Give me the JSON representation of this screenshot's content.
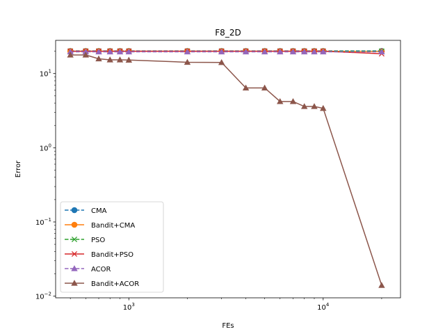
{
  "chart_data": {
    "type": "line",
    "title": "F8_2D",
    "xlabel": "FEs",
    "ylabel": "Error",
    "xscale": "log",
    "yscale": "log",
    "xlim": [
      420,
      25000
    ],
    "ylim": [
      0.0095,
      28
    ],
    "x": [
      500,
      600,
      700,
      800,
      900,
      1000,
      2000,
      3000,
      4000,
      5000,
      6000,
      7000,
      8000,
      9000,
      10000,
      20000
    ],
    "xticks": [
      {
        "value": 1000,
        "base": "10",
        "exp": "3"
      },
      {
        "value": 10000,
        "base": "10",
        "exp": "4"
      }
    ],
    "yticks": [
      {
        "value": 0.01,
        "base": "10",
        "exp": "−2"
      },
      {
        "value": 0.1,
        "base": "10",
        "exp": "−1"
      },
      {
        "value": 1,
        "base": "10",
        "exp": "0"
      },
      {
        "value": 10,
        "base": "10",
        "exp": "1"
      }
    ],
    "legend_position": "lower-left",
    "series": [
      {
        "name": "CMA",
        "color": "#1f77b4",
        "dash": "dashed",
        "marker": "circle",
        "values": [
          20.2,
          20.2,
          20.2,
          20.2,
          20.2,
          20.2,
          20.2,
          20.2,
          20.2,
          20.2,
          20.2,
          20.2,
          20.2,
          20.2,
          20.2,
          20.2
        ]
      },
      {
        "name": "Bandit+CMA",
        "color": "#ff7f0e",
        "dash": "solid",
        "marker": "circle",
        "values": [
          20.0,
          20.0,
          20.0,
          20.0,
          20.0,
          20.0,
          20.0,
          20.0,
          20.0,
          20.0,
          20.0,
          20.0,
          20.0,
          20.0,
          20.0,
          19.9
        ]
      },
      {
        "name": "PSO",
        "color": "#2ca02c",
        "dash": "dashed",
        "marker": "x",
        "values": [
          20.0,
          20.0,
          20.0,
          20.0,
          20.0,
          20.0,
          20.0,
          20.0,
          20.0,
          20.0,
          20.0,
          20.0,
          20.0,
          20.0,
          20.0,
          20.0
        ]
      },
      {
        "name": "Bandit+PSO",
        "color": "#d62728",
        "dash": "solid",
        "marker": "x",
        "values": [
          20.0,
          20.0,
          20.0,
          20.0,
          20.0,
          20.0,
          20.0,
          20.0,
          20.0,
          20.0,
          20.0,
          20.0,
          20.0,
          20.0,
          20.0,
          18.5
        ]
      },
      {
        "name": "ACOR",
        "color": "#9467bd",
        "dash": "dashed",
        "marker": "triangle",
        "values": [
          19.6,
          19.6,
          19.6,
          19.6,
          19.6,
          19.6,
          19.6,
          19.6,
          19.6,
          19.6,
          19.6,
          19.6,
          19.6,
          19.6,
          19.6,
          19.6
        ]
      },
      {
        "name": "Bandit+ACOR",
        "color": "#8c564b",
        "dash": "solid",
        "marker": "triangle",
        "values": [
          17.8,
          17.8,
          15.8,
          15.3,
          15.3,
          15.2,
          14.2,
          14.1,
          6.4,
          6.4,
          4.2,
          4.2,
          3.6,
          3.6,
          3.4,
          0.014
        ]
      }
    ]
  }
}
